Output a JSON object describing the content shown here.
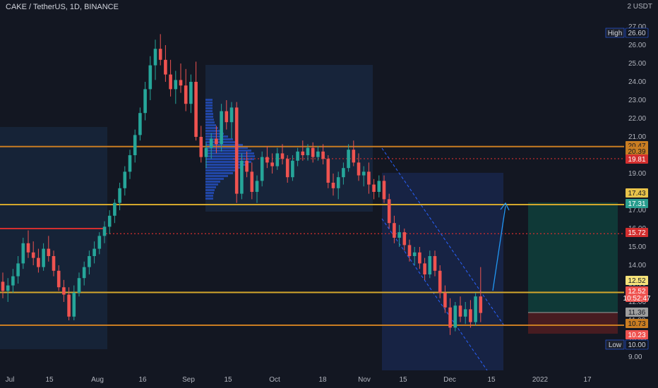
{
  "header": {
    "symbol": "CAKE / TetherUS, 1D, BINANCE",
    "unit": "2 USDT"
  },
  "colors": {
    "background": "#131722",
    "up": "#26a69a",
    "down": "#ef5350",
    "orange_level": "#c97d22",
    "yellow_level": "#d4a72c",
    "red_level": "#d32f2f",
    "arrow": "#2196f3",
    "box": "#1e3a5f"
  },
  "chart_data": {
    "type": "candlestick",
    "title": "CAKE / TetherUS, 1D, BINANCE",
    "x_tick_labels": [
      "Jul",
      "15",
      "Aug",
      "16",
      "Sep",
      "15",
      "Oct",
      "18",
      "Nov",
      "15",
      "Dec",
      "15",
      "2022",
      "17"
    ],
    "y_ticks": [
      9.0,
      10.0,
      11.0,
      12.0,
      13.0,
      14.0,
      15.0,
      16.0,
      17.0,
      18.0,
      19.0,
      20.0,
      21.0,
      22.0,
      23.0,
      24.0,
      25.0,
      26.0,
      27.0
    ],
    "ylim": [
      8.6,
      27.6
    ],
    "horizontal_levels": [
      20.47,
      17.31,
      12.52,
      10.73
    ],
    "dotted_levels": [
      19.81,
      15.72
    ],
    "price_badges": [
      {
        "label": "High",
        "value": "26.60"
      },
      {
        "value": "20.47"
      },
      {
        "value": "20.39"
      },
      {
        "value": "19.81"
      },
      {
        "value": "17.43"
      },
      {
        "value": "17.31"
      },
      {
        "value": "15.72"
      },
      {
        "value": "12.52"
      },
      {
        "value": "12.52",
        "sub": "10:52:47"
      },
      {
        "value": "11.36"
      },
      {
        "value": "10.73"
      },
      {
        "value": "10.23"
      },
      {
        "label": "Low",
        "value": "10.00"
      }
    ],
    "candles_ohlc": [
      [
        13.1,
        13.6,
        12.2,
        12.6
      ],
      [
        12.6,
        13.3,
        12.0,
        12.9
      ],
      [
        12.9,
        13.8,
        12.5,
        13.4
      ],
      [
        13.4,
        14.5,
        13.0,
        14.1
      ],
      [
        14.1,
        15.5,
        13.8,
        15.2
      ],
      [
        15.2,
        15.9,
        14.4,
        14.7
      ],
      [
        14.7,
        15.3,
        14.0,
        14.4
      ],
      [
        14.4,
        14.9,
        13.6,
        13.9
      ],
      [
        13.9,
        15.2,
        13.7,
        14.9
      ],
      [
        14.9,
        15.6,
        14.2,
        14.5
      ],
      [
        14.5,
        14.8,
        13.4,
        13.7
      ],
      [
        13.7,
        14.0,
        12.6,
        12.8
      ],
      [
        12.8,
        13.2,
        12.0,
        12.4
      ],
      [
        12.4,
        12.8,
        11.0,
        11.2
      ],
      [
        11.2,
        12.9,
        11.0,
        12.5
      ],
      [
        12.5,
        13.6,
        12.3,
        13.3
      ],
      [
        13.3,
        14.2,
        12.9,
        13.9
      ],
      [
        13.9,
        14.8,
        13.5,
        14.5
      ],
      [
        14.5,
        15.3,
        14.1,
        14.9
      ],
      [
        14.9,
        15.8,
        14.6,
        15.6
      ],
      [
        15.6,
        16.4,
        15.2,
        16.1
      ],
      [
        16.1,
        17.0,
        15.7,
        16.7
      ],
      [
        16.7,
        17.6,
        16.3,
        17.4
      ],
      [
        17.4,
        18.5,
        17.0,
        18.2
      ],
      [
        18.2,
        19.4,
        17.8,
        19.1
      ],
      [
        19.1,
        20.3,
        18.7,
        20.0
      ],
      [
        20.0,
        21.4,
        19.6,
        21.1
      ],
      [
        21.1,
        22.6,
        20.8,
        22.3
      ],
      [
        22.3,
        24.0,
        21.9,
        23.6
      ],
      [
        23.6,
        25.4,
        23.0,
        24.9
      ],
      [
        24.9,
        26.3,
        24.1,
        25.8
      ],
      [
        25.8,
        26.6,
        24.9,
        25.2
      ],
      [
        25.2,
        26.0,
        24.0,
        24.4
      ],
      [
        24.4,
        25.2,
        23.2,
        23.6
      ],
      [
        23.6,
        24.6,
        22.8,
        24.1
      ],
      [
        24.1,
        25.0,
        23.4,
        23.8
      ],
      [
        23.8,
        24.7,
        22.4,
        22.8
      ],
      [
        22.8,
        24.4,
        22.3,
        24.0
      ],
      [
        24.0,
        25.1,
        20.8,
        21.0
      ],
      [
        21.0,
        21.6,
        19.6,
        19.9
      ],
      [
        19.9,
        20.7,
        19.3,
        20.4
      ],
      [
        20.4,
        21.2,
        19.8,
        20.9
      ],
      [
        20.9,
        21.6,
        20.1,
        20.6
      ],
      [
        20.6,
        22.8,
        20.2,
        22.4
      ],
      [
        22.4,
        23.0,
        21.4,
        21.8
      ],
      [
        21.8,
        22.9,
        20.9,
        22.6
      ],
      [
        22.6,
        22.9,
        17.4,
        17.9
      ],
      [
        17.9,
        20.1,
        17.6,
        19.7
      ],
      [
        19.7,
        20.2,
        18.8,
        19.1
      ],
      [
        19.1,
        19.6,
        17.6,
        18.0
      ],
      [
        18.0,
        18.9,
        17.4,
        18.6
      ],
      [
        18.6,
        20.2,
        18.3,
        19.9
      ],
      [
        19.9,
        20.5,
        19.3,
        19.6
      ],
      [
        19.6,
        20.1,
        19.0,
        19.4
      ],
      [
        19.4,
        20.4,
        19.2,
        20.1
      ],
      [
        20.1,
        20.6,
        19.5,
        19.8
      ],
      [
        19.8,
        20.0,
        18.5,
        18.8
      ],
      [
        18.8,
        20.0,
        18.6,
        19.7
      ],
      [
        19.7,
        20.4,
        19.4,
        20.2
      ],
      [
        20.2,
        20.8,
        19.7,
        20.0
      ],
      [
        20.0,
        20.6,
        19.7,
        20.4
      ],
      [
        20.4,
        20.7,
        19.6,
        19.9
      ],
      [
        19.9,
        20.5,
        19.7,
        20.2
      ],
      [
        20.2,
        20.6,
        19.5,
        19.8
      ],
      [
        19.8,
        20.0,
        18.2,
        18.5
      ],
      [
        18.5,
        19.0,
        17.8,
        18.2
      ],
      [
        18.2,
        19.1,
        17.6,
        18.8
      ],
      [
        18.8,
        19.6,
        18.4,
        19.3
      ],
      [
        19.3,
        20.6,
        19.1,
        20.3
      ],
      [
        20.3,
        20.8,
        19.4,
        19.6
      ],
      [
        19.6,
        20.1,
        18.6,
        18.9
      ],
      [
        18.9,
        19.4,
        18.3,
        19.1
      ],
      [
        19.1,
        19.6,
        17.9,
        18.4
      ],
      [
        18.4,
        18.7,
        17.6,
        18.0
      ],
      [
        18.0,
        18.9,
        17.7,
        18.6
      ]
    ],
    "candles_ohlc_tail": [
      [
        18.6,
        18.9,
        17.4,
        17.6
      ],
      [
        17.6,
        17.9,
        16.0,
        16.3
      ],
      [
        16.3,
        16.7,
        15.2,
        15.5
      ],
      [
        15.5,
        16.2,
        15.0,
        15.8
      ],
      [
        15.8,
        16.0,
        14.8,
        15.1
      ],
      [
        15.1,
        15.4,
        14.2,
        14.5
      ],
      [
        14.5,
        15.0,
        14.0,
        14.7
      ],
      [
        14.7,
        15.0,
        13.8,
        14.1
      ],
      [
        14.1,
        14.4,
        13.2,
        13.5
      ],
      [
        13.5,
        14.8,
        13.3,
        14.5
      ],
      [
        14.5,
        14.8,
        13.4,
        13.7
      ],
      [
        13.7,
        14.0,
        12.2,
        12.5
      ],
      [
        12.5,
        12.9,
        11.4,
        11.7
      ],
      [
        11.7,
        12.2,
        10.2,
        10.6
      ],
      [
        10.6,
        12.0,
        10.4,
        11.8
      ],
      [
        11.8,
        12.3,
        10.9,
        11.2
      ],
      [
        11.2,
        12.0,
        10.8,
        11.6
      ],
      [
        11.6,
        12.1,
        10.6,
        10.9
      ],
      [
        10.9,
        12.5,
        10.7,
        12.3
      ],
      [
        12.3,
        13.9,
        10.9,
        11.4
      ]
    ],
    "annotations": [
      "Rectangle boxes",
      "Volume profile",
      "Descending channel",
      "Long position tool",
      "Target arrow"
    ]
  }
}
